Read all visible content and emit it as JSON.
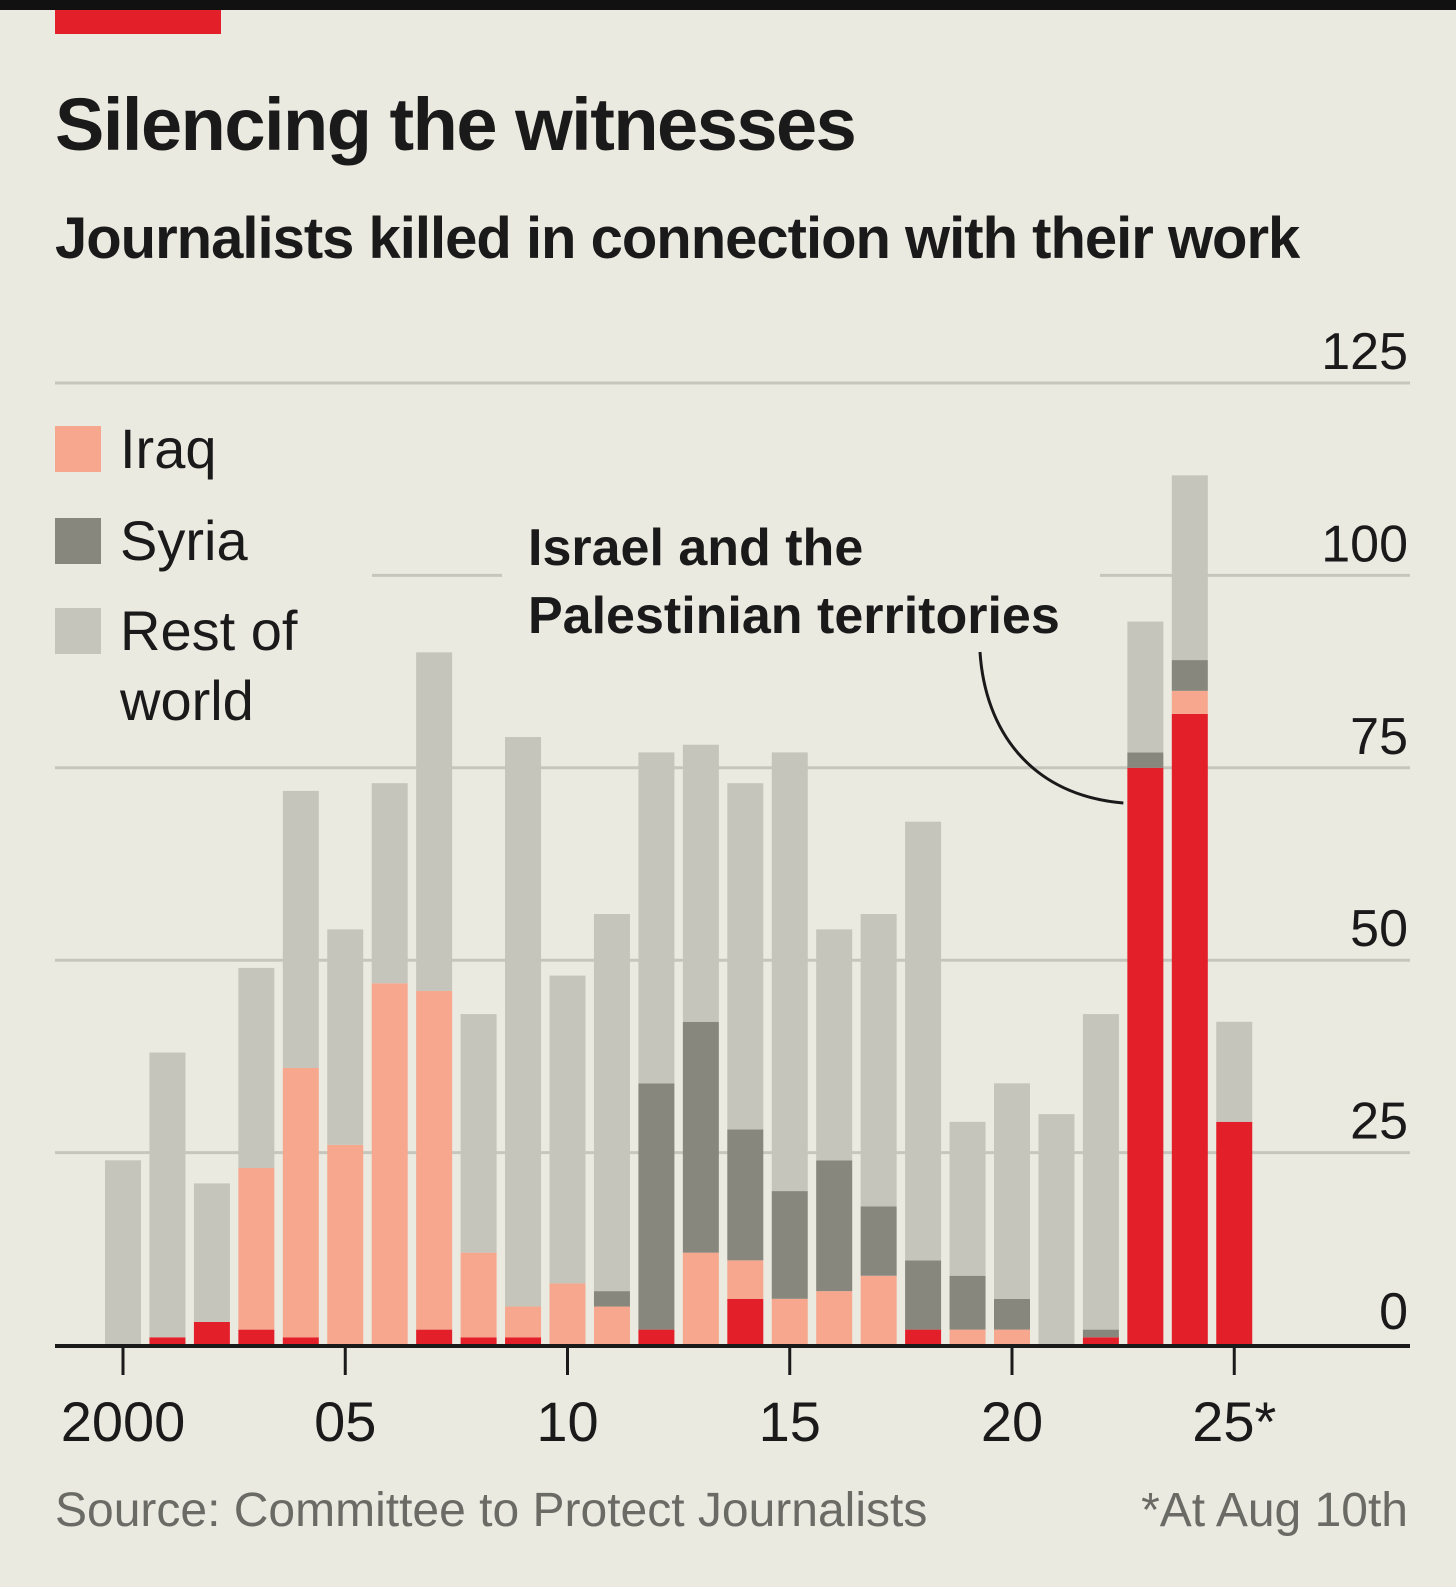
{
  "header": {
    "title": "Silencing the witnesses",
    "subtitle": "Journalists killed in connection with their work"
  },
  "footer": {
    "source": "Source: Committee to Protect Journalists",
    "footnote": "*At Aug 10th"
  },
  "colors": {
    "israel": "#e3202a",
    "iraq": "#f6a78e",
    "syria": "#87877d",
    "rest": "#c5c5bb",
    "background": "#ebeae1",
    "accent": "#e3202a"
  },
  "chart_data": {
    "type": "bar",
    "stacked": true,
    "title": "Silencing the witnesses",
    "subtitle": "Journalists killed in connection with their work",
    "categories": [
      "2000",
      "2001",
      "2002",
      "2003",
      "2004",
      "2005",
      "2006",
      "2007",
      "2008",
      "2009",
      "2010",
      "2011",
      "2012",
      "2013",
      "2014",
      "2015",
      "2016",
      "2017",
      "2018",
      "2019",
      "2020",
      "2021",
      "2022",
      "2023",
      "2024",
      "2025"
    ],
    "x_tick_labels": [
      {
        "category": "2000",
        "label": "2000"
      },
      {
        "category": "2005",
        "label": "05"
      },
      {
        "category": "2010",
        "label": "10"
      },
      {
        "category": "2015",
        "label": "15"
      },
      {
        "category": "2020",
        "label": "20"
      },
      {
        "category": "2025",
        "label": "25*"
      }
    ],
    "y_ticks": [
      0,
      25,
      50,
      75,
      100,
      125
    ],
    "ylim": [
      0,
      125
    ],
    "grid": true,
    "series": [
      {
        "key": "israel",
        "values": [
          0,
          1,
          3,
          2,
          1,
          0,
          0,
          2,
          1,
          1,
          0,
          0,
          2,
          0,
          6,
          0,
          0,
          0,
          2,
          0,
          0,
          0,
          1,
          75,
          82,
          29
        ]
      },
      {
        "key": "iraq",
        "name": "Iraq",
        "values": [
          0,
          0,
          0,
          21,
          35,
          26,
          47,
          44,
          11,
          4,
          8,
          5,
          0,
          12,
          5,
          6,
          7,
          9,
          0,
          2,
          2,
          0,
          0,
          0,
          3,
          0
        ]
      },
      {
        "key": "syria",
        "name": "Syria",
        "values": [
          0,
          0,
          0,
          0,
          0,
          0,
          0,
          0,
          0,
          0,
          0,
          2,
          32,
          30,
          17,
          14,
          17,
          9,
          9,
          7,
          4,
          0,
          1,
          2,
          4,
          0
        ]
      },
      {
        "key": "rest",
        "name": "Rest of world",
        "values": [
          24,
          37,
          18,
          26,
          36,
          28,
          26,
          44,
          31,
          74,
          40,
          49,
          43,
          36,
          45,
          57,
          30,
          38,
          57,
          20,
          28,
          30,
          41,
          17,
          24,
          13
        ]
      }
    ],
    "legend": {
      "position": "top-left",
      "items": [
        {
          "key": "iraq",
          "label_lines": [
            "Iraq"
          ]
        },
        {
          "key": "syria",
          "label_lines": [
            "Syria"
          ]
        },
        {
          "key": "rest",
          "label_lines": [
            "Rest of",
            "world"
          ]
        }
      ]
    },
    "annotation": {
      "target_series": "israel",
      "target_category": "2023",
      "text_lines": [
        "Israel and the",
        "Palestinian territories"
      ]
    }
  }
}
